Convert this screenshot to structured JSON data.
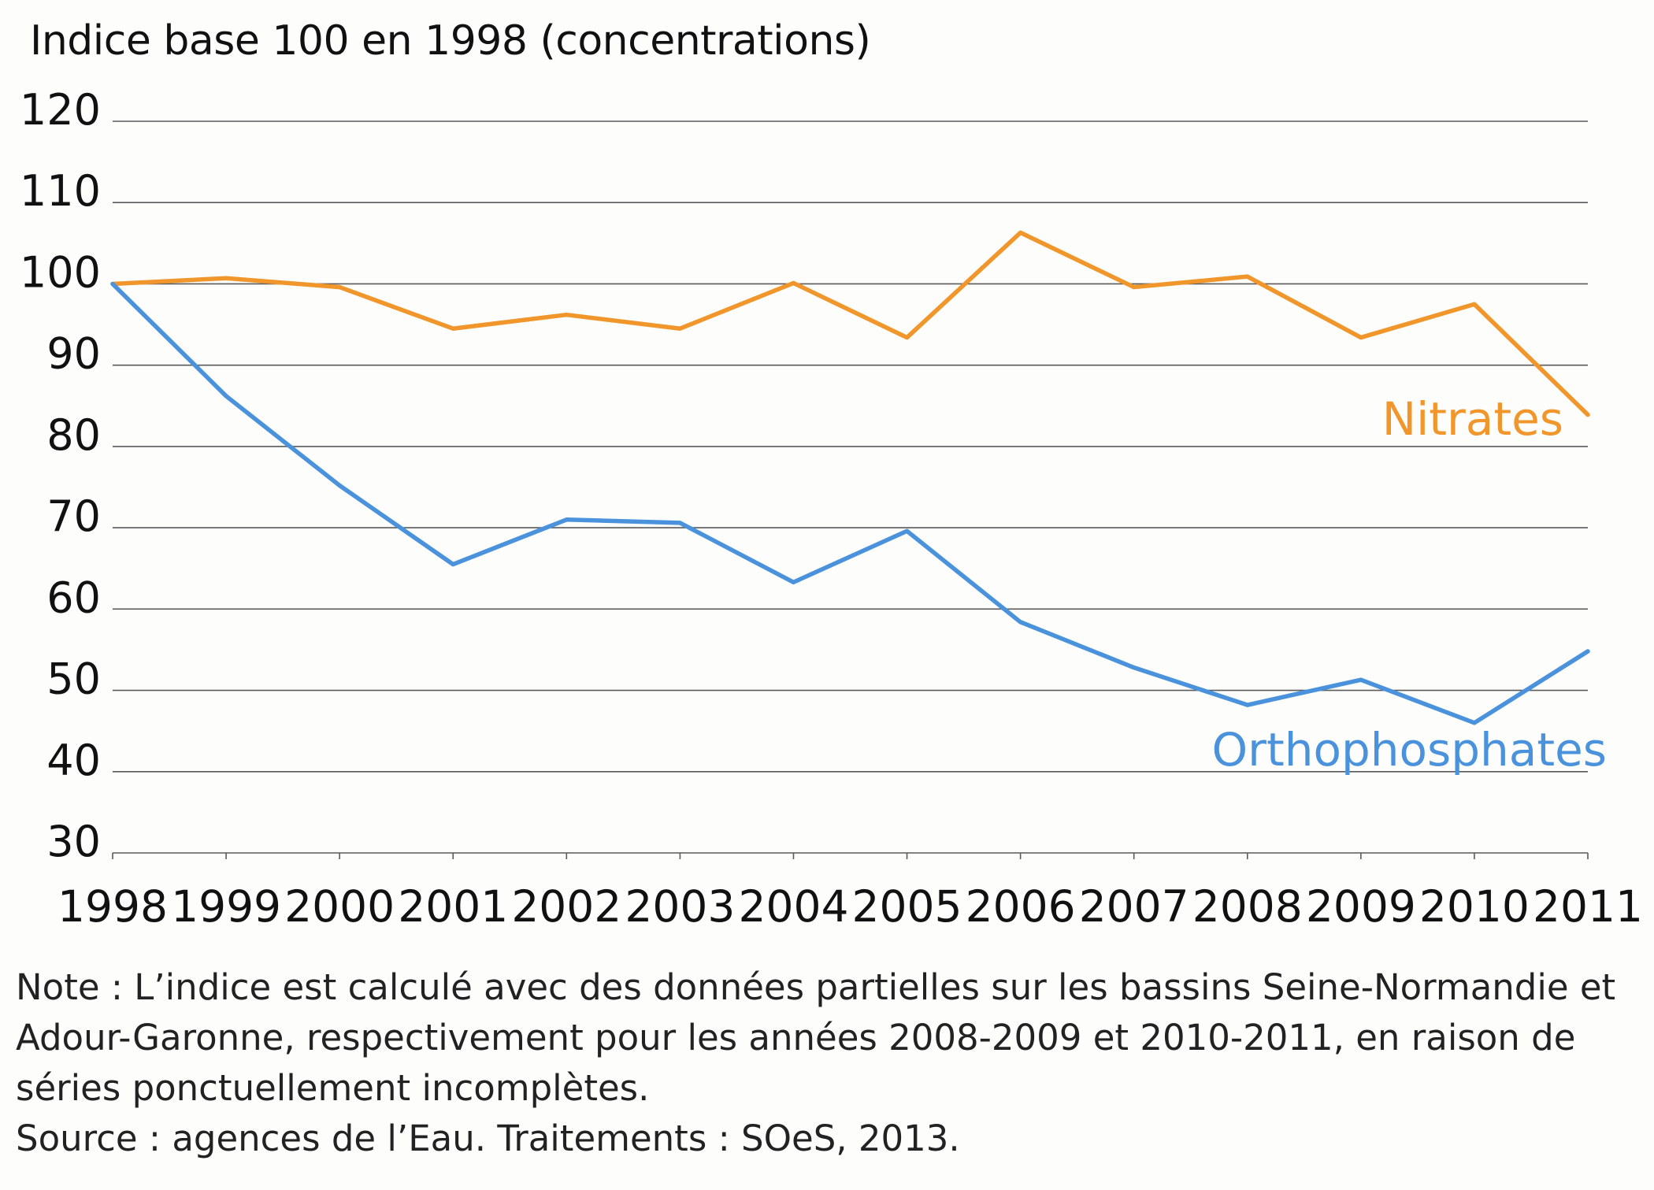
{
  "chart_data": {
    "type": "line",
    "ylabel": "Indice base 100 en 1998 (concentrations)",
    "xlabel": "",
    "x": [
      1998,
      1999,
      2000,
      2001,
      2002,
      2003,
      2004,
      2005,
      2006,
      2007,
      2008,
      2009,
      2010,
      2011
    ],
    "ylim": [
      30,
      120
    ],
    "yticks": [
      30,
      40,
      50,
      60,
      70,
      80,
      90,
      100,
      110,
      120
    ],
    "grid": true,
    "series": [
      {
        "name": "Nitrates",
        "color": "#f0962b",
        "values": [
          100,
          100.7,
          99.6,
          94.5,
          96.2,
          94.5,
          100.1,
          93.4,
          106.3,
          99.6,
          100.9,
          93.4,
          97.5,
          83.9
        ]
      },
      {
        "name": "Orthophosphates",
        "color": "#4a93dc",
        "values": [
          100,
          86.2,
          75.2,
          65.5,
          71.0,
          70.6,
          63.3,
          69.6,
          58.4,
          52.8,
          48.2,
          51.3,
          46.0,
          54.8
        ]
      }
    ]
  },
  "footnotes": {
    "note": "Note : L’indice est calculé avec des données partielles sur les bassins Seine-Normandie et Adour-Garonne, respectivement pour les années 2008-2009 et 2010-2011, en raison de séries ponctuellement incomplètes.",
    "source": "Source : agences de l’Eau. Traitements : SOeS, 2013."
  }
}
